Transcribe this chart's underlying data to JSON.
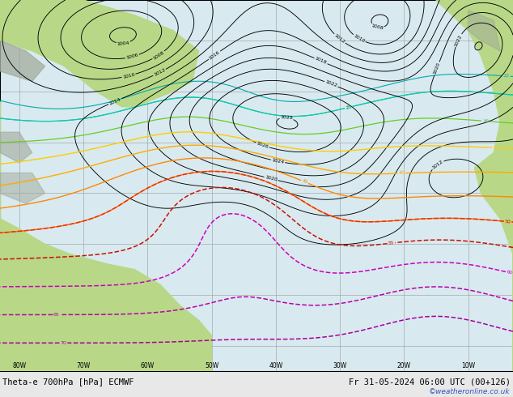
{
  "title_left": "Theta-e 700hPa [hPa] ECMWF",
  "title_right": "Fr 31-05-2024 06:00 UTC (00+126)",
  "watermark": "©weatheronline.co.uk",
  "lon_labels": [
    "80W",
    "70W",
    "60W",
    "50W",
    "40W",
    "30W",
    "20W",
    "10W"
  ],
  "lon_ticks": [
    -80,
    -70,
    -60,
    -50,
    -40,
    -30,
    -20,
    -10
  ],
  "lat_ticks": [
    0,
    10,
    20,
    30,
    40,
    50,
    60
  ],
  "xlim": [
    -83,
    -3
  ],
  "ylim": [
    -5,
    68
  ],
  "land_color": "#b8d888",
  "ocean_color": "#d8eaf0",
  "highland_color": "#a0a898",
  "grid_color": "#aaaaaa",
  "title_fontsize": 8,
  "watermark_color": "#3355bb",
  "fig_width": 6.34,
  "fig_height": 4.9,
  "dpi": 100,
  "bottom_bar_color": "#e0e0e0",
  "map_bg": "#e8e8e8"
}
